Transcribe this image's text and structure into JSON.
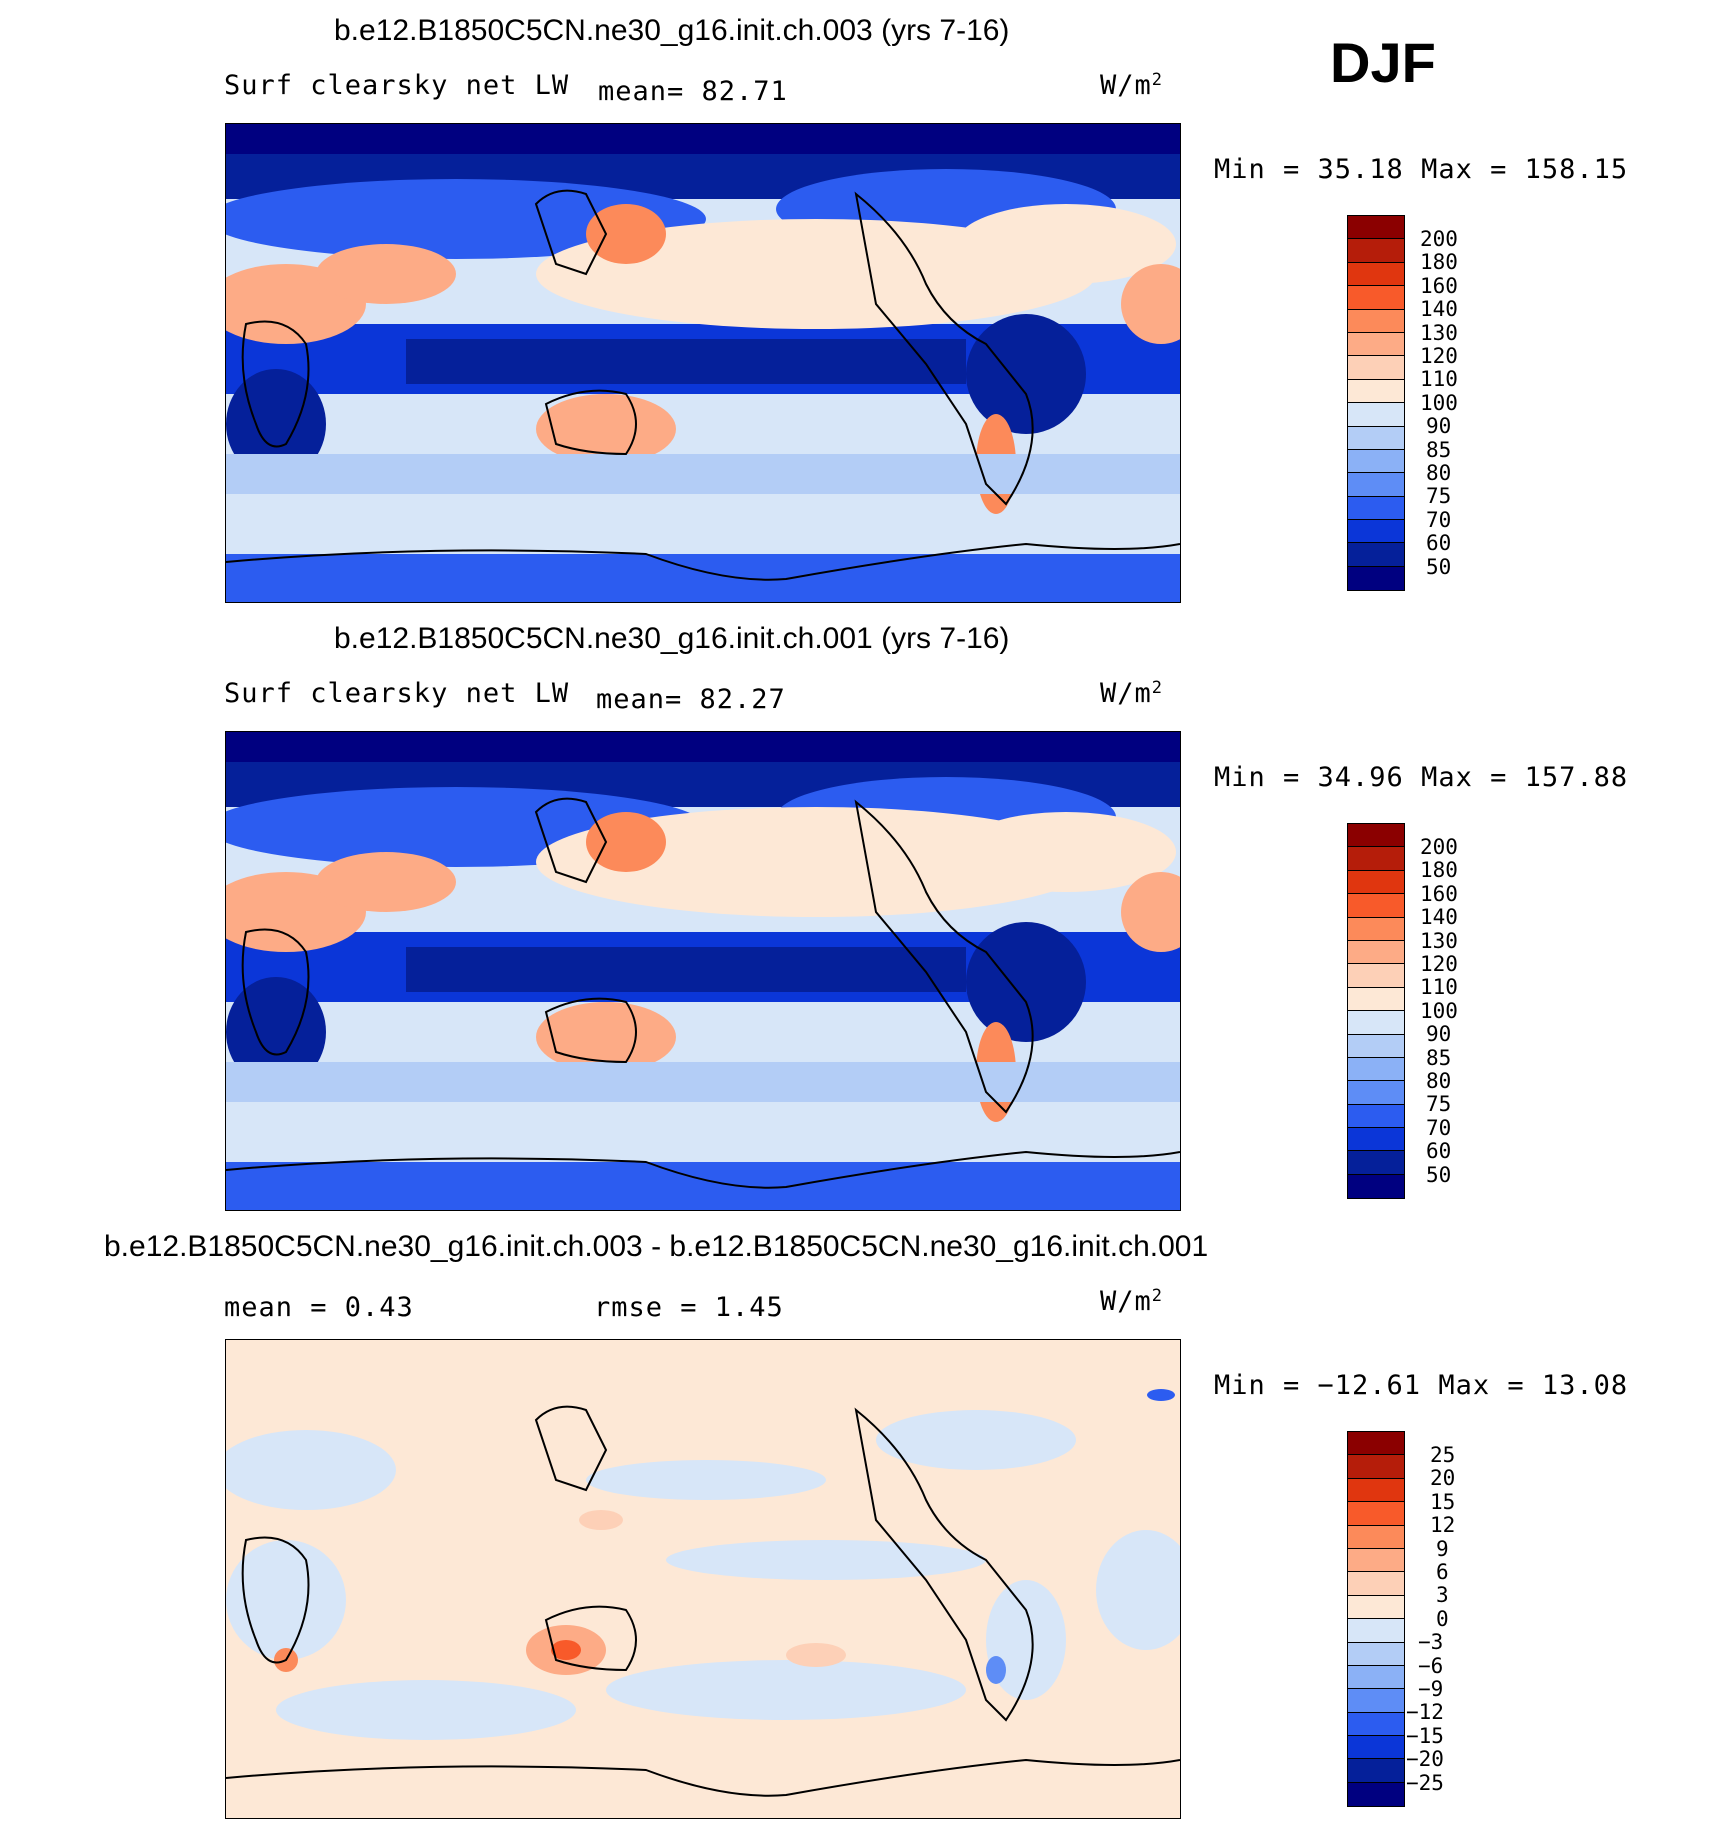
{
  "season": "DJF",
  "panels": [
    {
      "title": "b.e12.B1850C5CN.ne30_g16.init.ch.003 (yrs 7-16)",
      "left_label": "Surf clearsky net LW",
      "center_label": "mean=  82.71",
      "units_base": "W/m",
      "units_exp": "2",
      "minmax": "Min =  35.18 Max = 158.15"
    },
    {
      "title": "b.e12.B1850C5CN.ne30_g16.init.ch.001 (yrs 7-16)",
      "left_label": "Surf clearsky net LW",
      "center_label": "mean=  82.27",
      "units_base": "W/m",
      "units_exp": "2",
      "minmax": "Min =  34.96 Max = 157.88"
    },
    {
      "title": "b.e12.B1850C5CN.ne30_g16.init.ch.003 - b.e12.B1850C5CN.ne30_g16.init.ch.001",
      "left_label": "mean =   0.43",
      "center_label": "rmse =   1.45",
      "units_base": "W/m",
      "units_exp": "2",
      "minmax": "Min = −12.61 Max =  13.08"
    }
  ],
  "chart_data": [
    {
      "type": "heatmap",
      "title": "b.e12.B1850C5CN.ne30_g16.init.ch.003 (yrs 7-16)",
      "variable": "Surf clearsky net LW",
      "units": "W/m2",
      "mean": 82.71,
      "min": 35.18,
      "max": 158.15,
      "colorbar_levels": [
        50,
        60,
        70,
        75,
        80,
        85,
        90,
        100,
        110,
        120,
        130,
        140,
        160,
        180,
        200
      ]
    },
    {
      "type": "heatmap",
      "title": "b.e12.B1850C5CN.ne30_g16.init.ch.001 (yrs 7-16)",
      "variable": "Surf clearsky net LW",
      "units": "W/m2",
      "mean": 82.27,
      "min": 34.96,
      "max": 157.88,
      "colorbar_levels": [
        50,
        60,
        70,
        75,
        80,
        85,
        90,
        100,
        110,
        120,
        130,
        140,
        160,
        180,
        200
      ]
    },
    {
      "type": "heatmap",
      "title": "b.e12.B1850C5CN.ne30_g16.init.ch.003 - b.e12.B1850C5CN.ne30_g16.init.ch.001",
      "units": "W/m2",
      "mean": 0.43,
      "rmse": 1.45,
      "min": -12.61,
      "max": 13.08,
      "colorbar_levels": [
        "25",
        "20",
        "15",
        "12",
        "9",
        "6",
        "3",
        "0",
        "−3",
        "−6",
        "−9",
        "−12",
        "−15",
        "−20",
        "−25"
      ]
    }
  ],
  "colorbars": [
    {
      "labels": [
        "200",
        "180",
        "160",
        "140",
        "130",
        "120",
        "110",
        "100",
        "90",
        "85",
        "80",
        "75",
        "70",
        "60",
        "50"
      ],
      "colors": [
        "#8b0000",
        "#b51d0a",
        "#e0360f",
        "#f85a2a",
        "#fc8a5a",
        "#fdab86",
        "#fdd0b7",
        "#fde8d6",
        "#d7e6f8",
        "#b3cdf6",
        "#8bb1f6",
        "#5e8df6",
        "#2c5cf0",
        "#0b36d8",
        "#05209a",
        "#000080"
      ]
    },
    {
      "labels": [
        "200",
        "180",
        "160",
        "140",
        "130",
        "120",
        "110",
        "100",
        "90",
        "85",
        "80",
        "75",
        "70",
        "60",
        "50"
      ],
      "colors": [
        "#8b0000",
        "#b51d0a",
        "#e0360f",
        "#f85a2a",
        "#fc8a5a",
        "#fdab86",
        "#fdd0b7",
        "#fde8d6",
        "#d7e6f8",
        "#b3cdf6",
        "#8bb1f6",
        "#5e8df6",
        "#2c5cf0",
        "#0b36d8",
        "#05209a",
        "#000080"
      ]
    },
    {
      "labels": [
        "25",
        "20",
        "15",
        "12",
        "9",
        "6",
        "3",
        "0",
        "−3",
        "−6",
        "−9",
        "−12",
        "−15",
        "−20",
        "−25"
      ],
      "colors": [
        "#8b0000",
        "#b51d0a",
        "#e0360f",
        "#f85a2a",
        "#fc8a5a",
        "#fdab86",
        "#fdd0b7",
        "#fde8d6",
        "#d7e6f8",
        "#b3cdf6",
        "#8bb1f6",
        "#5e8df6",
        "#2c5cf0",
        "#0b36d8",
        "#05209a",
        "#000080"
      ]
    }
  ]
}
